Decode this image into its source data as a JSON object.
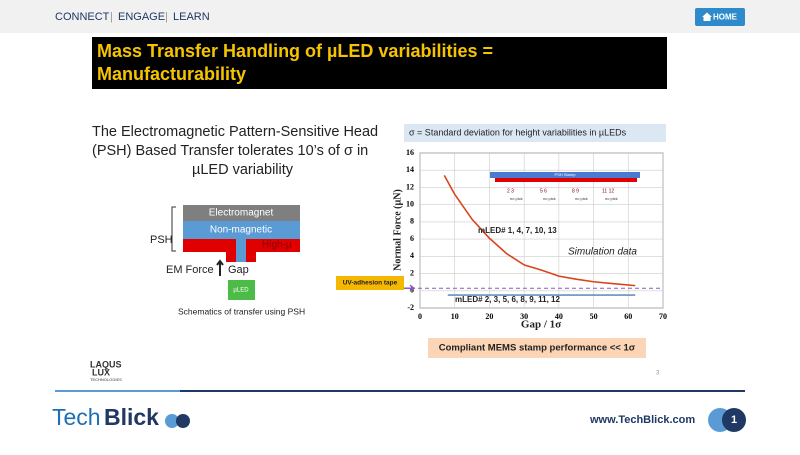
{
  "header": {
    "nav": [
      "CONNECT",
      "ENGAGE",
      "LEARN"
    ],
    "home": "HOME"
  },
  "slide": {
    "title_lines": [
      "Mass Transfer Handling of µLED variabilities =",
      "Manufacturability"
    ],
    "intro_lines": [
      "The Electromagnetic Pattern-Sensitive Head",
      "(PSH) Based Transfer tolerates 10’s of σ in",
      "µLED variability"
    ],
    "diagram": {
      "electromagnet": "Electromagnet",
      "non_magnetic": "Non-magnetic",
      "high_mu": "High-µ",
      "psh": "PSH",
      "em_force": "EM Force",
      "gap": "Gap",
      "uled": "µLED",
      "caption": "Schematics of transfer using PSH"
    },
    "logo_lines": [
      "LAQUS",
      "LUX",
      "TECHNOLOGIES"
    ],
    "page_number": "3"
  },
  "chart_data": {
    "type": "line",
    "subtitle": "σ = Standard deviation for height variabilities in µLEDs",
    "y_label": "Normal Force (µN)",
    "x_label": "Gap / 1σ",
    "xlim": [
      0,
      70
    ],
    "xticks": [
      0,
      10,
      20,
      30,
      40,
      50,
      60,
      70
    ],
    "ylim": [
      -2,
      16
    ],
    "yticks": [
      -2,
      0,
      2,
      4,
      6,
      8,
      10,
      12,
      14,
      16
    ],
    "grid": true,
    "series": [
      {
        "name": "mLED# 1, 4, 7, 10, 13",
        "color": "#d9441c",
        "x": [
          7,
          10,
          15,
          20,
          25,
          30,
          35,
          40,
          45,
          50,
          55,
          62
        ],
        "values": [
          13.4,
          11.2,
          8.3,
          6.1,
          4.3,
          3.0,
          2.4,
          1.7,
          1.35,
          1.05,
          0.85,
          0.6
        ]
      },
      {
        "name": "mLED# 2, 3, 5, 6, 8, 9, 11, 12",
        "color": "#6a8fc0",
        "x": [
          8,
          62
        ],
        "values": [
          -0.5,
          -0.5
        ]
      }
    ],
    "reference_line": {
      "value": 0.3,
      "label": "UV-adhesion tape",
      "color": "#8a5cc0"
    },
    "annotations": {
      "simulation": "Simulation data",
      "conclusion": "Compliant MEMS stamp performance << 1σ"
    },
    "inset": {
      "stamp": "PSH Stamp",
      "pairs": [
        "2  3",
        "5  6",
        "8  9",
        "11  12"
      ],
      "no_pick": "no pick"
    }
  },
  "footer": {
    "brand": [
      "Tech",
      "Blick"
    ],
    "url": "www.TechBlick.com",
    "page": "1"
  }
}
